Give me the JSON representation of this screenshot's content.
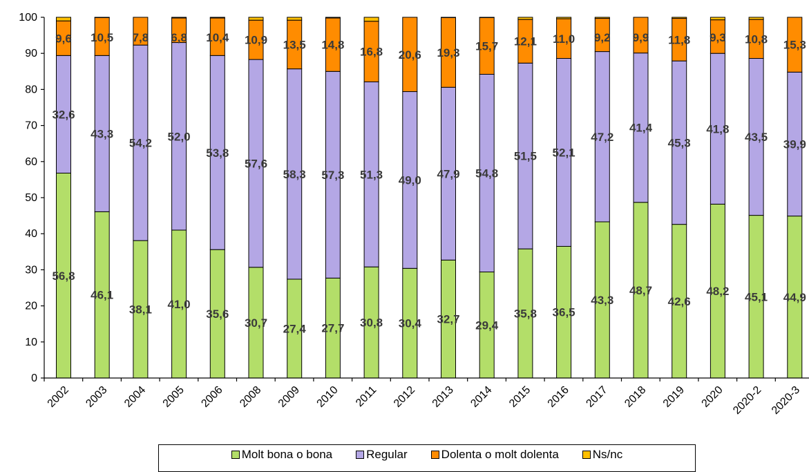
{
  "chart_data": {
    "type": "bar",
    "stacked": true,
    "title": "",
    "xlabel": "",
    "ylabel": "",
    "ylim": [
      0,
      100
    ],
    "yticks": [
      0,
      10,
      20,
      30,
      40,
      50,
      60,
      70,
      80,
      90,
      100
    ],
    "categories": [
      "2002",
      "2003",
      "2004",
      "2005",
      "2006",
      "2008",
      "2009",
      "2010",
      "2011",
      "2012",
      "2013",
      "2014",
      "2015",
      "2016",
      "2017",
      "2018",
      "2019",
      "2020",
      "2020-2",
      "2020-3"
    ],
    "series": [
      {
        "name": "Molt bona o bona",
        "color": "#b3de69",
        "values": [
          56.8,
          46.1,
          38.1,
          41.0,
          35.6,
          30.7,
          27.4,
          27.7,
          30.8,
          30.4,
          32.7,
          29.4,
          35.8,
          36.5,
          43.3,
          48.7,
          42.6,
          48.2,
          45.1,
          44.9
        ],
        "labels": [
          "56,8",
          "46,1",
          "38,1",
          "41,0",
          "35,6",
          "30,7",
          "27,4",
          "27,7",
          "30,8",
          "30,4",
          "32,7",
          "29,4",
          "35,8",
          "36,5",
          "43,3",
          "48,7",
          "42,6",
          "48,2",
          "45,1",
          "44,9"
        ]
      },
      {
        "name": "Regular",
        "color": "#b4a7e5",
        "values": [
          32.6,
          43.3,
          54.2,
          52.0,
          53.8,
          57.6,
          58.3,
          57.3,
          51.3,
          49.0,
          47.9,
          54.8,
          51.5,
          52.1,
          47.2,
          41.4,
          45.3,
          41.8,
          43.5,
          39.9
        ],
        "labels": [
          "32,6",
          "43,3",
          "54,2",
          "52,0",
          "53,8",
          "57,6",
          "58,3",
          "57,3",
          "51,3",
          "49,0",
          "47,9",
          "54,8",
          "51,5",
          "52,1",
          "47,2",
          "41,4",
          "45,3",
          "41,8",
          "43,5",
          "39,9"
        ]
      },
      {
        "name": "Dolenta o molt dolenta",
        "color": "#ff8c00",
        "values": [
          9.6,
          10.5,
          7.8,
          6.8,
          10.4,
          10.9,
          13.5,
          14.8,
          16.8,
          20.6,
          19.3,
          15.7,
          12.1,
          11.0,
          9.2,
          9.9,
          11.8,
          9.3,
          10.8,
          15.3
        ],
        "labels": [
          "9,6",
          "10,5",
          "7,8",
          "6,8",
          "10,4",
          "10,9",
          "13,5",
          "14,8",
          "16,8",
          "20,6",
          "19,3",
          "15,7",
          "12,1",
          "11,0",
          "9,2",
          "9,9",
          "11,8",
          "9,3",
          "10,8",
          "15,3"
        ]
      },
      {
        "name": "Ns/nc",
        "color": "#ffc000",
        "values": [
          1.0,
          0.1,
          0.0,
          0.2,
          0.2,
          0.8,
          0.8,
          0.2,
          1.1,
          0.0,
          0.1,
          0.1,
          0.6,
          0.4,
          0.3,
          0.0,
          0.3,
          0.7,
          0.6,
          0.0
        ],
        "labels": []
      }
    ],
    "legend_position": "bottom",
    "grid": false
  }
}
